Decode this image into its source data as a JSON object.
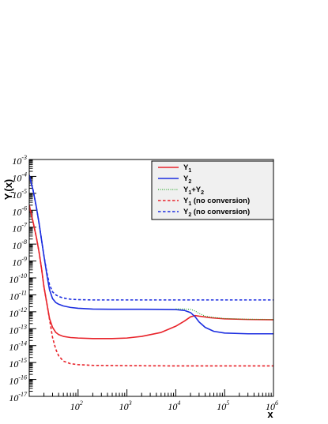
{
  "chart_data": {
    "type": "line",
    "xscale": "log",
    "yscale": "log",
    "xlim": [
      10,
      1000000
    ],
    "ylim": [
      1e-17,
      0.001
    ],
    "grid": false,
    "legend_position": "top-right",
    "xlabel": "x",
    "ylabel": "Y",
    "ylabel_sub": "i",
    "ylabel_suffix": "(x)",
    "xticks_labeled": [
      {
        "base": "10",
        "exp": "2"
      },
      {
        "base": "10",
        "exp": "3"
      },
      {
        "base": "10",
        "exp": "4"
      },
      {
        "base": "10",
        "exp": "5"
      },
      {
        "base": "10",
        "exp": "6"
      }
    ],
    "yticks_labeled": [
      {
        "base": "10",
        "exp": "-3"
      },
      {
        "base": "10",
        "exp": "-4"
      },
      {
        "base": "10",
        "exp": "-5"
      },
      {
        "base": "10",
        "exp": "-6"
      },
      {
        "base": "10",
        "exp": "-7"
      },
      {
        "base": "10",
        "exp": "-8"
      },
      {
        "base": "10",
        "exp": "-9"
      },
      {
        "base": "10",
        "exp": "-10"
      },
      {
        "base": "10",
        "exp": "-11"
      },
      {
        "base": "10",
        "exp": "-12"
      },
      {
        "base": "10",
        "exp": "-13"
      },
      {
        "base": "10",
        "exp": "-14"
      },
      {
        "base": "10",
        "exp": "-15"
      },
      {
        "base": "10",
        "exp": "-16"
      },
      {
        "base": "10",
        "exp": "-17"
      }
    ],
    "series": [
      {
        "name": "Y1",
        "legend_main": "Y",
        "legend_sub": "1",
        "legend_rest": "",
        "color": "#e8232a",
        "dash": "solid",
        "width": 1.6,
        "x": [
          10,
          12,
          14,
          16,
          18,
          20,
          23,
          26,
          30,
          35,
          40,
          50,
          70,
          100,
          200,
          500,
          1000,
          2000,
          5000,
          10000,
          15000,
          20000,
          25000,
          30000,
          50000,
          100000,
          300000,
          1000000
        ],
        "y": [
          2e-06,
          2e-07,
          2.5e-08,
          3e-09,
          3e-10,
          3e-11,
          3e-12,
          4e-13,
          1.2e-13,
          6e-14,
          4.5e-14,
          3.5e-14,
          3e-14,
          2.8e-14,
          2.6e-14,
          2.6e-14,
          2.8e-14,
          3.5e-14,
          6e-14,
          1.4e-13,
          2.8e-13,
          5e-13,
          6e-13,
          5.5e-13,
          4.5e-13,
          3.8e-13,
          3.5e-13,
          3.4e-13
        ]
      },
      {
        "name": "Y2",
        "legend_main": "Y",
        "legend_sub": "2",
        "legend_rest": "",
        "color": "#1c2ee0",
        "dash": "solid",
        "width": 1.6,
        "x": [
          10,
          12,
          14,
          16,
          18,
          20,
          23,
          26,
          30,
          35,
          40,
          50,
          70,
          100,
          200,
          500,
          1000,
          2000,
          5000,
          10000,
          15000,
          20000,
          25000,
          30000,
          40000,
          60000,
          100000,
          300000,
          1000000
        ],
        "y": [
          0.00012,
          1.5e-05,
          1.5e-06,
          1.5e-07,
          1.5e-08,
          2e-09,
          1.5e-10,
          2e-11,
          6e-12,
          3.5e-12,
          2.8e-12,
          2.2e-12,
          1.8e-12,
          1.6e-12,
          1.45e-12,
          1.4e-12,
          1.4e-12,
          1.4e-12,
          1.38e-12,
          1.35e-12,
          1.2e-12,
          9e-13,
          5e-13,
          2.5e-13,
          1.2e-13,
          7e-14,
          5.5e-14,
          5e-14,
          5e-14
        ]
      },
      {
        "name": "Y1+Y2",
        "legend_main": "Y",
        "legend_sub": "1",
        "legend_rest": "+Y",
        "legend_sub2": "2",
        "color": "#2fa82f",
        "dash": "dot",
        "width": 1.2,
        "x": [
          10000,
          15000,
          20000,
          25000,
          30000,
          40000,
          60000,
          100000,
          300000,
          1000000
        ],
        "y": [
          1.45e-12,
          1.45e-12,
          1.4e-12,
          1.1e-12,
          8e-13,
          5.5e-13,
          4.6e-13,
          4e-13,
          3.6e-13,
          3.5e-13
        ]
      },
      {
        "name": "Y1 (no conversion)",
        "legend_main": "Y",
        "legend_sub": "1",
        "legend_rest": " (no conversion)",
        "color": "#e8232a",
        "dash": "dash",
        "width": 1.6,
        "x": [
          10,
          12,
          14,
          16,
          18,
          20,
          23,
          26,
          28,
          30,
          35,
          40,
          50,
          70,
          100,
          200,
          1000,
          10000,
          100000,
          1000000
        ],
        "y": [
          2e-06,
          2e-07,
          2.5e-08,
          3e-09,
          3e-10,
          3e-11,
          3e-12,
          3.5e-13,
          1e-13,
          3e-14,
          6e-15,
          2.5e-15,
          1.2e-15,
          8.5e-16,
          7.5e-16,
          6.8e-16,
          6.5e-16,
          6.3e-16,
          6.3e-16,
          6.3e-16
        ]
      },
      {
        "name": "Y2 (no conversion)",
        "legend_main": "Y",
        "legend_sub": "2",
        "legend_rest": " (no conversion)",
        "color": "#1c2ee0",
        "dash": "dash",
        "width": 1.6,
        "x": [
          10,
          12,
          14,
          16,
          18,
          20,
          23,
          26,
          30,
          35,
          40,
          50,
          70,
          100,
          200,
          1000,
          10000,
          100000,
          1000000
        ],
        "y": [
          0.00012,
          1.5e-05,
          1.5e-06,
          1.5e-07,
          1.5e-08,
          2e-09,
          2e-10,
          4e-11,
          1.5e-11,
          1e-11,
          8e-12,
          6.5e-12,
          5.5e-12,
          5.2e-12,
          5e-12,
          5e-12,
          5e-12,
          5e-12,
          5e-12
        ]
      }
    ]
  }
}
